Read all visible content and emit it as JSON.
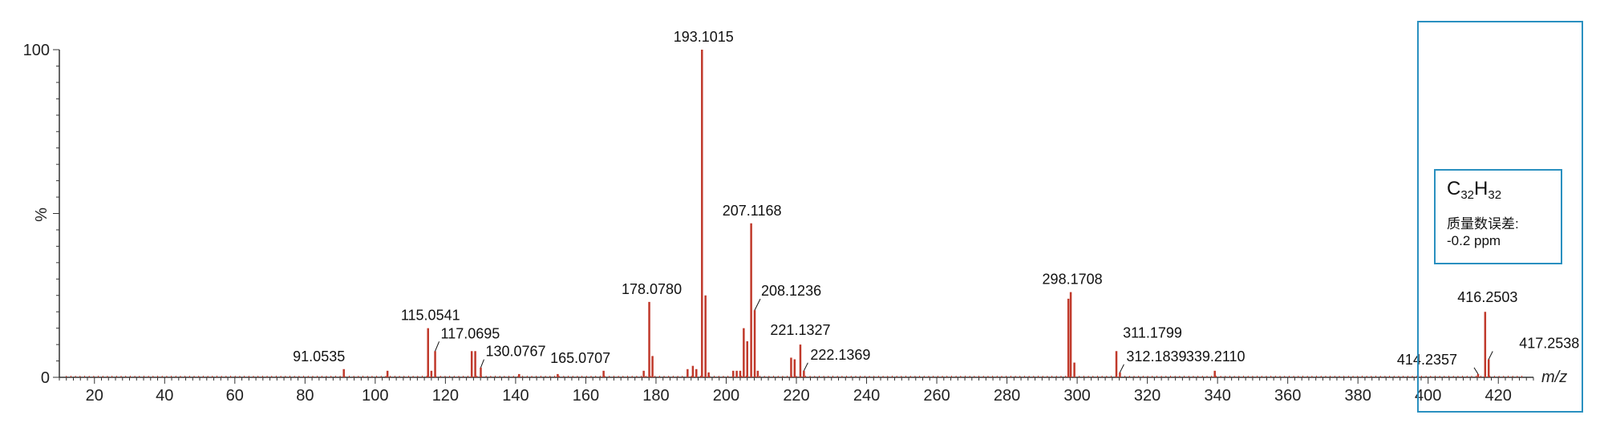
{
  "chart_data": {
    "type": "bar",
    "xlabel": "m/z",
    "ylabel": "%",
    "xlim": [
      10,
      430
    ],
    "ylim": [
      0,
      100
    ],
    "x_ticks": [
      20,
      40,
      60,
      80,
      100,
      120,
      140,
      160,
      180,
      200,
      220,
      240,
      260,
      280,
      300,
      320,
      340,
      360,
      380,
      400,
      420
    ],
    "y_ticks": [
      0,
      100
    ],
    "y_tick_labels": [
      "0",
      "100"
    ],
    "peak_color": "#c0392b",
    "peaks": [
      {
        "mz": 91.0535,
        "intensity": 2.5,
        "label": "91.0535"
      },
      {
        "mz": 103.5,
        "intensity": 2.0
      },
      {
        "mz": 115.0541,
        "intensity": 15.0,
        "label": "115.0541"
      },
      {
        "mz": 116.0,
        "intensity": 2.0
      },
      {
        "mz": 117.0695,
        "intensity": 8.0,
        "label": "117.0695"
      },
      {
        "mz": 127.5,
        "intensity": 8.0
      },
      {
        "mz": 128.5,
        "intensity": 8.0
      },
      {
        "mz": 130.0767,
        "intensity": 3.0,
        "label": "130.0767"
      },
      {
        "mz": 141.0,
        "intensity": 1.0
      },
      {
        "mz": 152.0,
        "intensity": 1.0
      },
      {
        "mz": 165.0707,
        "intensity": 2.0,
        "label": "165.0707"
      },
      {
        "mz": 176.5,
        "intensity": 2.0
      },
      {
        "mz": 178.078,
        "intensity": 23.0,
        "label": "178.0780"
      },
      {
        "mz": 179.0,
        "intensity": 6.5
      },
      {
        "mz": 189.0,
        "intensity": 2.5
      },
      {
        "mz": 190.5,
        "intensity": 3.5
      },
      {
        "mz": 191.5,
        "intensity": 2.5
      },
      {
        "mz": 193.1015,
        "intensity": 100.0,
        "label": "193.1015"
      },
      {
        "mz": 194.1,
        "intensity": 25.0
      },
      {
        "mz": 195.0,
        "intensity": 1.5
      },
      {
        "mz": 202.0,
        "intensity": 2.0
      },
      {
        "mz": 203.0,
        "intensity": 2.0
      },
      {
        "mz": 204.0,
        "intensity": 2.0
      },
      {
        "mz": 205.0,
        "intensity": 15.0
      },
      {
        "mz": 206.0,
        "intensity": 11.0
      },
      {
        "mz": 207.1168,
        "intensity": 47.0,
        "label": "207.1168"
      },
      {
        "mz": 208.1236,
        "intensity": 20.5,
        "label": "208.1236"
      },
      {
        "mz": 209.0,
        "intensity": 2.0
      },
      {
        "mz": 218.5,
        "intensity": 6.0
      },
      {
        "mz": 219.5,
        "intensity": 5.5
      },
      {
        "mz": 221.1327,
        "intensity": 10.0,
        "label": "221.1327"
      },
      {
        "mz": 222.1369,
        "intensity": 2.0,
        "label": "222.1369"
      },
      {
        "mz": 297.5,
        "intensity": 24.0
      },
      {
        "mz": 298.1708,
        "intensity": 26.0,
        "label": "298.1708"
      },
      {
        "mz": 299.2,
        "intensity": 4.5
      },
      {
        "mz": 311.1799,
        "intensity": 8.0,
        "label": "311.1799"
      },
      {
        "mz": 312.1839,
        "intensity": 1.5,
        "label": "312.1839"
      },
      {
        "mz": 339.211,
        "intensity": 2.0,
        "label": "339.2110"
      },
      {
        "mz": 414.2357,
        "intensity": 1.0,
        "label": "414.2357"
      },
      {
        "mz": 416.2503,
        "intensity": 20.0,
        "label": "416.2503"
      },
      {
        "mz": 417.2538,
        "intensity": 5.5,
        "label": "417.2538"
      }
    ]
  },
  "formula_box": {
    "formula_parts": [
      {
        "text": "C",
        "sub": false
      },
      {
        "text": "32",
        "sub": true
      },
      {
        "text": "H",
        "sub": false
      },
      {
        "text": "32",
        "sub": true
      }
    ],
    "mass_error_label": "质量数误差:",
    "mass_error_value": "-0.2 ppm"
  }
}
